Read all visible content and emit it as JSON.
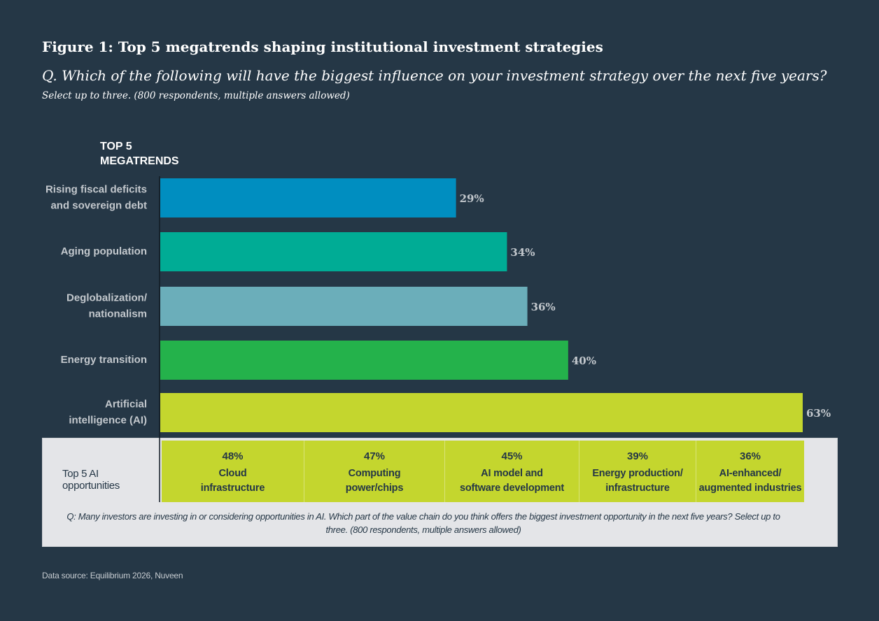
{
  "title": "Figure 1: Top 5 megatrends shaping institutional investment strategies",
  "question": "Q. Which of the following will have the biggest influence on your investment strategy over the next five years?",
  "subquestion": "Select up to three. (800 respondents, multiple answers allowed)",
  "legend_heading": "TOP 5 MEGATRENDS",
  "chart_data": {
    "type": "bar",
    "orientation": "horizontal",
    "title": "",
    "xlabel": "",
    "ylabel": "",
    "xlim": [
      0,
      63
    ],
    "grid": false,
    "categories": [
      [
        "Rising fiscal deficits",
        "and sovereign debt"
      ],
      [
        "Aging population"
      ],
      [
        "Deglobalization/",
        "nationalism"
      ],
      [
        "Energy transition"
      ],
      [
        "Artificial",
        "intelligence (AI)"
      ]
    ],
    "values": [
      29,
      34,
      36,
      40,
      63
    ],
    "value_labels": [
      "29%",
      "34%",
      "36%",
      "40%",
      "63%"
    ],
    "colors": [
      "#008ec0",
      "#00ac95",
      "#6baeba",
      "#24b24b",
      "#c4d62e"
    ]
  },
  "ai_panel": {
    "label": "Top 5 AI opportunities",
    "items": [
      {
        "value": "48%",
        "lines": [
          "Cloud",
          "infrastructure"
        ]
      },
      {
        "value": "47%",
        "lines": [
          "Computing",
          "power/chips"
        ]
      },
      {
        "value": "45%",
        "lines": [
          "AI model and",
          "software development"
        ]
      },
      {
        "value": "39%",
        "lines": [
          "Energy production/",
          "infrastructure"
        ]
      },
      {
        "value": "36%",
        "lines": [
          "AI-enhanced/",
          "augmented industries"
        ]
      }
    ],
    "question": "Q: Many investors are investing in or considering opportunities in AI. Which part of the value chain do you think offers the biggest investment opportunity in the next five years? Select up to three. (800 respondents, multiple answers allowed)"
  },
  "source": "Data source: Equilibrium 2026, Nuveen",
  "colors": {
    "background": "#253746",
    "panel_background": "#e4e5e8",
    "ai_accent": "#c4d62e"
  }
}
